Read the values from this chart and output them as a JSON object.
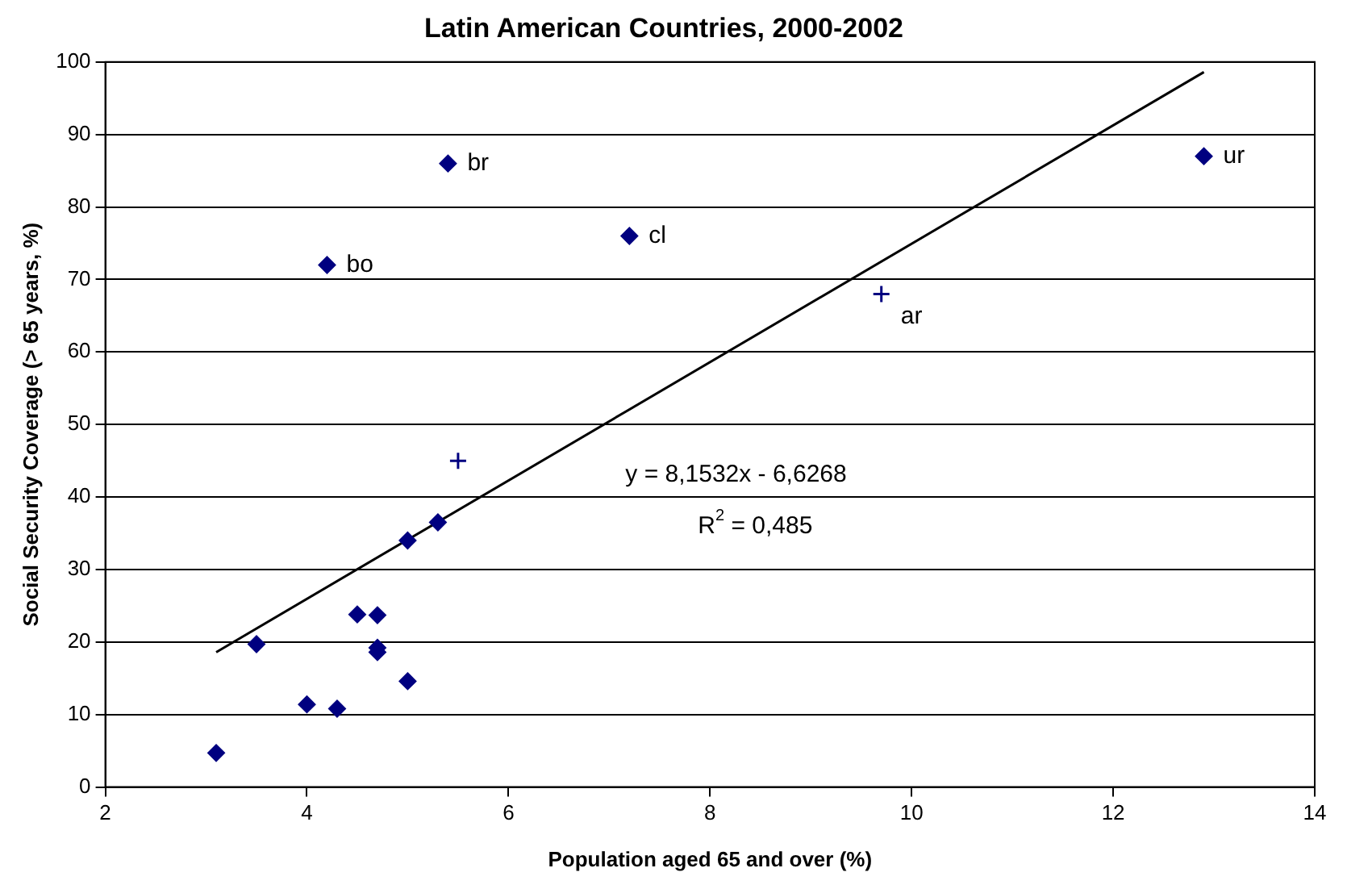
{
  "chart_data": {
    "type": "scatter",
    "title": "Latin American Countries, 2000-2002",
    "xlabel": "Population aged 65 and over (%)",
    "ylabel": "Social Security Coverage (> 65 years, %)",
    "xlim": [
      2,
      14
    ],
    "xticks": [
      2,
      4,
      6,
      8,
      10,
      12,
      14
    ],
    "ylim": [
      0,
      100
    ],
    "yticks": [
      0,
      10,
      20,
      30,
      40,
      50,
      60,
      70,
      80,
      90,
      100
    ],
    "grid": "y",
    "legend": false,
    "marker": "diamond",
    "series": [
      {
        "color": "#000080",
        "x": [
          3.1,
          3.5,
          4.0,
          4.3,
          4.5,
          4.7,
          4.7,
          4.7,
          5.0,
          5.0,
          5.3,
          5.4,
          4.2,
          7.2,
          12.9
        ],
        "values": [
          4.7,
          19.7,
          11.4,
          10.8,
          23.8,
          23.7,
          19.2,
          18.6,
          14.6,
          34.0,
          36.5,
          86,
          72,
          76,
          87
        ]
      },
      {
        "color": "#000080",
        "marker": "cross",
        "x": [
          5.5,
          9.7
        ],
        "values": [
          45,
          68
        ]
      },
      {
        "type": "line",
        "color": "#000000",
        "marker": "none",
        "x": [
          3.1,
          12.9
        ],
        "values": [
          18.6,
          98.6
        ]
      }
    ],
    "annotations": [
      {
        "text": "br",
        "x": 5.4,
        "y": 86
      },
      {
        "text": "bo",
        "x": 4.2,
        "y": 72
      },
      {
        "text": "cl",
        "x": 7.2,
        "y": 76
      },
      {
        "text": "ar",
        "x": 9.7,
        "y": 68
      },
      {
        "text": "ur",
        "x": 12.9,
        "y": 87
      },
      "y = 8,1532x - 6,6268",
      "R$^{2}$ = 0,485"
    ]
  }
}
